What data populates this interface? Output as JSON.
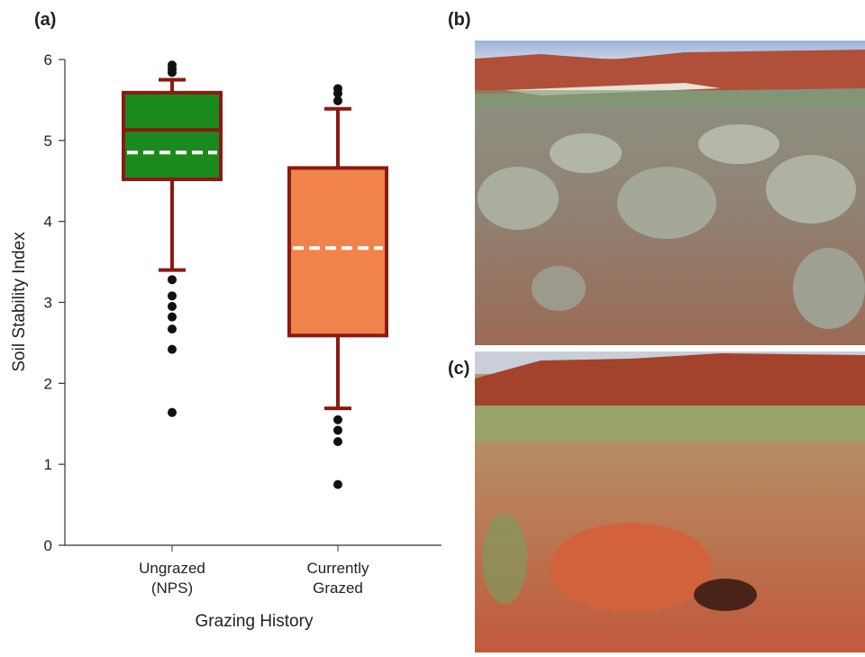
{
  "chart_data": {
    "type": "box",
    "panel_label": "(a)",
    "photo_labels": [
      "(b)",
      "(c)"
    ],
    "xlabel": "Grazing History",
    "ylabel": "Soil Stability Index",
    "ylim": [
      0,
      6
    ],
    "yticks": [
      0,
      1,
      2,
      3,
      4,
      5,
      6
    ],
    "categories": [
      "Ungrazed (NPS)",
      "Currently Grazed"
    ],
    "boxes": [
      {
        "color": "#1a8a1e",
        "whisker_low": 3.4,
        "q1": 4.52,
        "median": 5.13,
        "q3": 5.59,
        "whisker_high": 5.75,
        "mean": 4.85,
        "outliers": [
          5.93,
          5.88,
          5.84,
          3.28,
          3.08,
          2.95,
          2.82,
          2.67,
          2.42,
          1.64
        ]
      },
      {
        "color": "#f0834a",
        "whisker_low": 1.69,
        "q1": 2.59,
        "median": null,
        "q3": 4.66,
        "whisker_high": 5.39,
        "mean": 3.67,
        "outliers": [
          5.64,
          5.58,
          5.49,
          1.55,
          1.42,
          1.28,
          0.75
        ]
      }
    ],
    "edge_color": "#8b1a12"
  }
}
